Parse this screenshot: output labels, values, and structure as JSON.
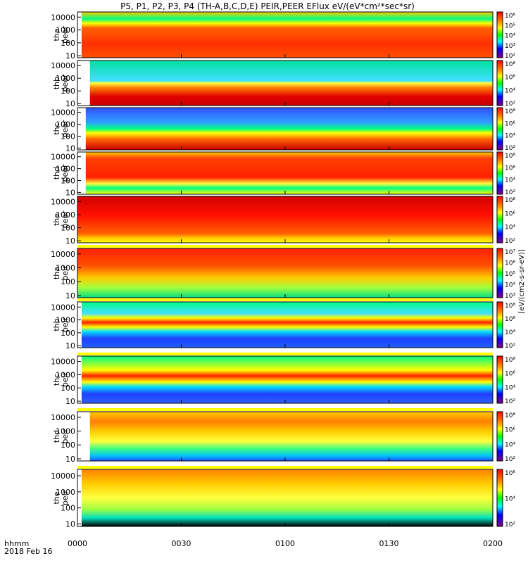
{
  "header": {
    "title": "P5, P1, P2, P3, P4 (TH-A,B,C,D,E) PEIR,PEER EFlux eV/(eV*cm²*sec*sr)"
  },
  "footer": {
    "time_axis_label": "hhmm",
    "date_label": "2018 Feb 16"
  },
  "colorbar_label": "[eV/(cm2-s-sr-eV)]",
  "colors": {
    "frame": "#000000",
    "fill_gap": "#ffff00",
    "no_data": "#ffffff"
  },
  "chart_data": {
    "type": "heatmap",
    "x_ticks": [
      "0000",
      "0030",
      "0100",
      "0130",
      "0200"
    ],
    "x_range": [
      "0000",
      "0200"
    ],
    "y_scale": "log",
    "y_ticks": [
      "10",
      "100",
      "1000",
      "10000"
    ],
    "panels": [
      {
        "id": "tha-peer",
        "label_top": "tha",
        "label_bottom": "peer",
        "cbar_ticks": [
          "10⁶",
          "10⁵",
          "10⁴",
          "10³",
          "10²"
        ]
      },
      {
        "id": "thb-peer",
        "label_top": "thb",
        "label_bottom": "peer",
        "cbar_ticks": [
          "10⁸",
          "10⁶",
          "10⁴",
          "10²"
        ]
      },
      {
        "id": "thc-peer",
        "label_top": "thc",
        "label_bottom": "peer",
        "cbar_ticks": [
          "10⁸",
          "10⁶",
          "10⁴",
          "10²"
        ]
      },
      {
        "id": "thd-peer",
        "label_top": "thd",
        "label_bottom": "peer",
        "cbar_ticks": [
          "10⁸",
          "10⁶",
          "10⁴",
          "10²"
        ]
      },
      {
        "id": "the-peer",
        "label_top": "the",
        "label_bottom": "peer",
        "cbar_ticks": [
          "10⁸",
          "10⁶",
          "10⁴",
          "10²"
        ]
      },
      {
        "id": "tha-peir",
        "label_top": "tha",
        "label_bottom": "peir",
        "cbar_ticks": [
          "10⁷",
          "10⁶",
          "10⁵",
          "10⁴",
          "10³"
        ]
      },
      {
        "id": "thb-peir",
        "label_top": "thb",
        "label_bottom": "peir",
        "cbar_ticks": [
          "10⁸",
          "10⁶",
          "10⁴",
          "10²"
        ]
      },
      {
        "id": "thc-peir",
        "label_top": "thc",
        "label_bottom": "peir",
        "cbar_ticks": [
          "10⁸",
          "10⁶",
          "10⁴",
          "10²"
        ]
      },
      {
        "id": "thd-peir",
        "label_top": "thd",
        "label_bottom": "peir",
        "cbar_ticks": [
          "10⁸",
          "10⁶",
          "10⁴",
          "10²"
        ]
      },
      {
        "id": "the-peir",
        "label_top": "the",
        "label_bottom": "peir",
        "cbar_ticks": [
          "10⁶",
          "10⁴",
          "10²"
        ]
      }
    ]
  }
}
